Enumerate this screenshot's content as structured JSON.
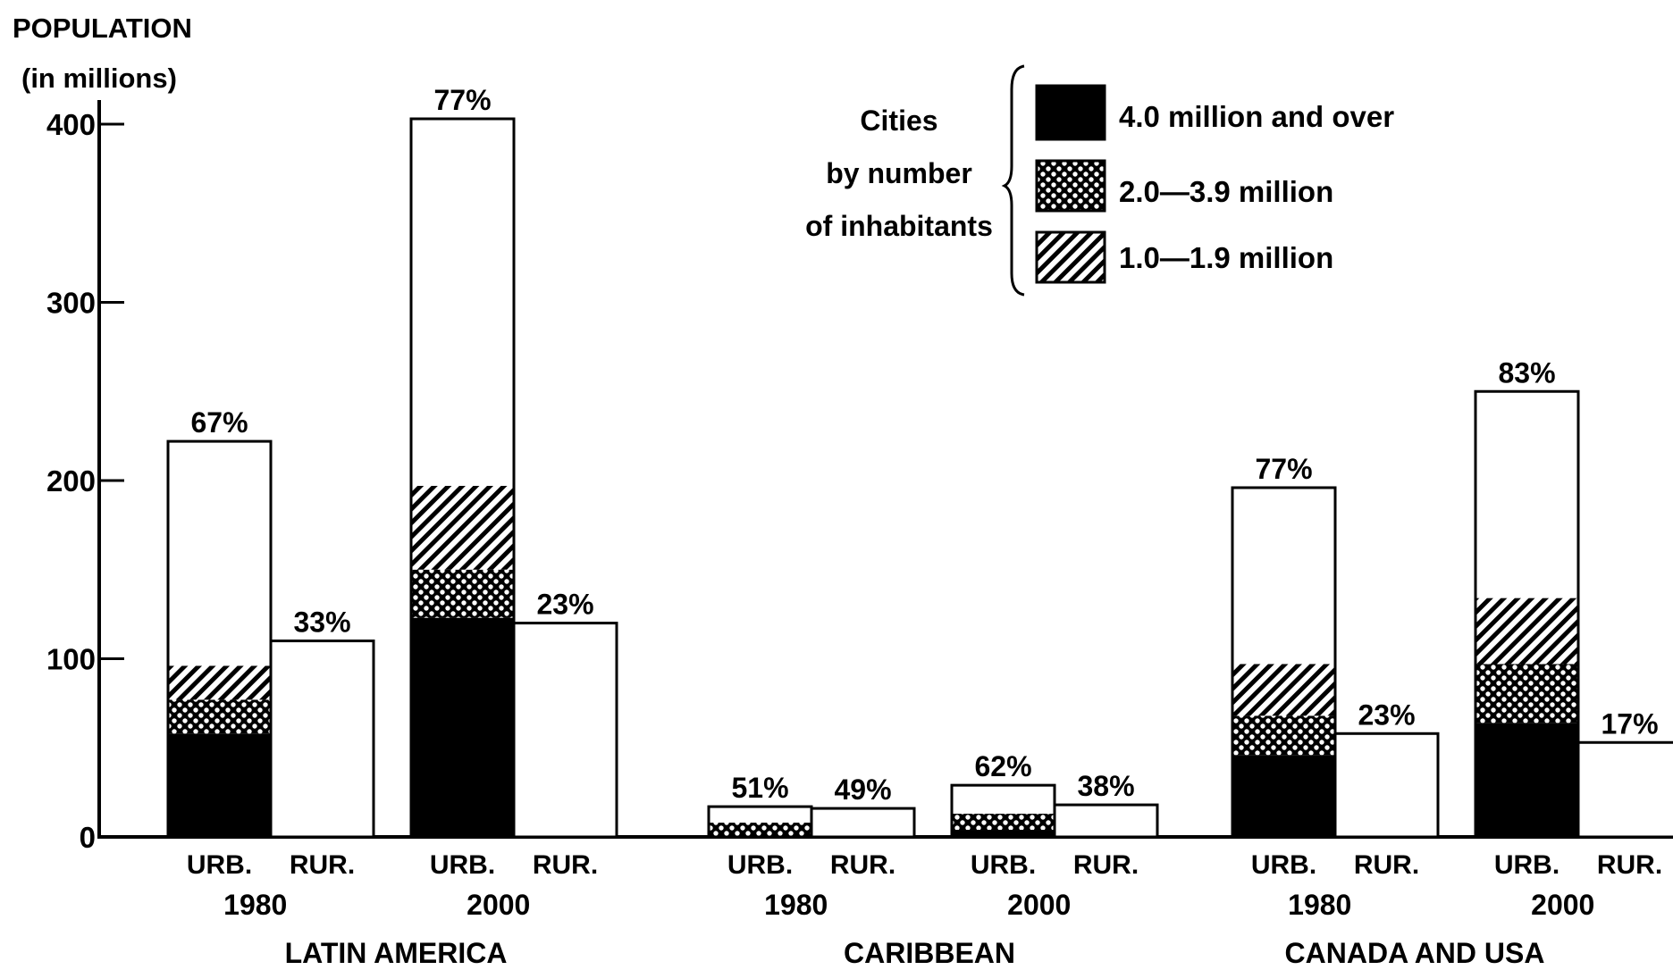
{
  "y_axis_label": [
    "POPULATION",
    "(in millions)"
  ],
  "legend": {
    "title": [
      "Cities",
      "by number",
      "of inhabitants"
    ],
    "items": [
      {
        "name": "4.0 million and over",
        "pattern": "solid"
      },
      {
        "name": "2.0—3.9 million",
        "pattern": "dots"
      },
      {
        "name": "1.0—1.9 million",
        "pattern": "hatch"
      }
    ]
  },
  "chart_data": {
    "type": "bar",
    "stacked": true,
    "ylim": [
      0,
      400
    ],
    "yticks": [
      0,
      100,
      200,
      300,
      400
    ],
    "ylabel": "POPULATION (in millions)",
    "grid": false,
    "legend_position": "top-right",
    "colors": {
      "bar_fill": "#ffffff",
      "solid": "#000000",
      "stroke": "#000000"
    },
    "segment_order": [
      "4.0 million and over",
      "2.0—3.9 million",
      "1.0—1.9 million"
    ],
    "regions": [
      {
        "name": "LATIN AMERICA",
        "years": [
          {
            "year": "1980",
            "urban": {
              "label": "URB.",
              "pct": "67%",
              "total": 222,
              "segments": [
                58,
                19,
                19
              ]
            },
            "rural": {
              "label": "RUR.",
              "pct": "33%",
              "total": 110
            }
          },
          {
            "year": "2000",
            "urban": {
              "label": "URB.",
              "pct": "77%",
              "total": 403,
              "segments": [
                123,
                27,
                47
              ]
            },
            "rural": {
              "label": "RUR.",
              "pct": "23%",
              "total": 120
            }
          }
        ]
      },
      {
        "name": "CARIBBEAN",
        "years": [
          {
            "year": "1980",
            "urban": {
              "label": "URB.",
              "pct": "51%",
              "total": 17,
              "segments": [
                0,
                8,
                0
              ]
            },
            "rural": {
              "label": "RUR.",
              "pct": "49%",
              "total": 16
            }
          },
          {
            "year": "2000",
            "urban": {
              "label": "URB.",
              "pct": "62%",
              "total": 29,
              "segments": [
                4,
                9,
                0
              ]
            },
            "rural": {
              "label": "RUR.",
              "pct": "38%",
              "total": 18
            }
          }
        ]
      },
      {
        "name": "CANADA AND USA",
        "years": [
          {
            "year": "1980",
            "urban": {
              "label": "URB.",
              "pct": "77%",
              "total": 196,
              "segments": [
                46,
                22,
                29
              ]
            },
            "rural": {
              "label": "RUR.",
              "pct": "23%",
              "total": 58
            }
          },
          {
            "year": "2000",
            "urban": {
              "label": "URB.",
              "pct": "83%",
              "total": 250,
              "segments": [
                64,
                33,
                37
              ]
            },
            "rural": {
              "label": "RUR.",
              "pct": "17%",
              "total": 53
            }
          }
        ]
      }
    ]
  }
}
